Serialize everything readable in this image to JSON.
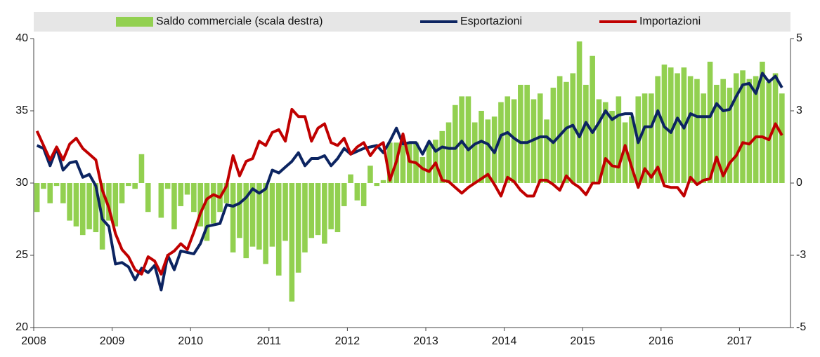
{
  "chart_data": {
    "type": "bar-line",
    "categories": [
      "2008",
      null,
      null,
      null,
      null,
      null,
      null,
      null,
      null,
      null,
      null,
      null,
      "2009",
      null,
      null,
      null,
      null,
      null,
      null,
      null,
      null,
      null,
      null,
      null,
      "2010",
      null,
      null,
      null,
      null,
      null,
      null,
      null,
      null,
      null,
      null,
      null,
      "2011",
      null,
      null,
      null,
      null,
      null,
      null,
      null,
      null,
      null,
      null,
      null,
      "2012",
      null,
      null,
      null,
      null,
      null,
      null,
      null,
      null,
      null,
      null,
      null,
      "2013",
      null,
      null,
      null,
      null,
      null,
      null,
      null,
      null,
      null,
      null,
      null,
      "2014",
      null,
      null,
      null,
      null,
      null,
      null,
      null,
      null,
      null,
      null,
      null,
      "2015",
      null,
      null,
      null,
      null,
      null,
      null,
      null,
      null,
      null,
      null,
      null,
      "2016",
      null,
      null,
      null,
      null,
      null,
      null,
      null,
      null,
      null,
      null,
      null,
      "2017",
      null,
      null,
      null,
      null,
      null,
      null
    ],
    "series": [
      {
        "name": "Saldo commerciale (scala destra)",
        "color": "#92d050",
        "axis": "y2",
        "kind": "bar",
        "values": [
          -1.0,
          -0.2,
          -0.7,
          -0.1,
          -0.7,
          -1.3,
          -1.5,
          -1.8,
          -1.6,
          -1.7,
          -2.3,
          -1.3,
          -1.5,
          -0.7,
          -0.1,
          -0.2,
          1.0,
          -1.0,
          0.0,
          -1.2,
          -0.2,
          -1.6,
          -0.8,
          -0.4,
          -1.0,
          -1.5,
          -2.0,
          -1.4,
          -1.0,
          -0.7,
          -2.4,
          -1.9,
          -2.6,
          -2.2,
          -2.3,
          -2.8,
          -2.2,
          -3.2,
          -2.0,
          -4.1,
          -3.1,
          -2.4,
          -1.9,
          -1.8,
          -2.1,
          -1.6,
          -1.7,
          -0.8,
          0.3,
          -0.6,
          -0.8,
          0.6,
          -0.1,
          0.1,
          1.4,
          1.4,
          1.3,
          1.4,
          1.4,
          0.9,
          1.4,
          1.5,
          1.8,
          2.1,
          2.7,
          3.0,
          3.0,
          2.1,
          2.5,
          2.2,
          2.3,
          2.8,
          3.0,
          2.9,
          3.4,
          3.4,
          2.9,
          3.1,
          2.2,
          3.3,
          3.7,
          3.5,
          3.8,
          4.9,
          3.4,
          4.4,
          2.9,
          2.8,
          2.5,
          3.0,
          2.1,
          2.3,
          3.0,
          3.1,
          3.1,
          3.7,
          4.1,
          4.0,
          3.8,
          4.0,
          3.7,
          3.6,
          3.1,
          4.2,
          3.4,
          3.6,
          3.3,
          3.8,
          3.9,
          3.6,
          3.7,
          4.2,
          3.5,
          3.8,
          3.1
        ]
      },
      {
        "name": "Esportazioni",
        "color": "#0c2461",
        "kind": "line",
        "values": [
          32.6,
          32.4,
          31.2,
          32.4,
          30.9,
          31.4,
          31.5,
          30.4,
          30.6,
          29.8,
          27.5,
          27.0,
          24.4,
          24.5,
          24.2,
          23.3,
          24.1,
          23.8,
          24.3,
          22.6,
          25.0,
          24.0,
          25.3,
          25.2,
          25.1,
          25.8,
          27.0,
          27.1,
          27.2,
          28.5,
          28.4,
          28.6,
          29.0,
          29.6,
          29.3,
          29.6,
          30.9,
          30.7,
          31.1,
          31.5,
          32.1,
          31.2,
          31.7,
          31.7,
          31.9,
          31.2,
          31.7,
          32.4,
          32.0,
          32.2,
          32.4,
          32.5,
          32.6,
          32.1,
          32.9,
          33.8,
          32.7,
          32.8,
          32.8,
          32.0,
          32.9,
          32.2,
          32.5,
          32.4,
          32.4,
          32.9,
          32.3,
          32.7,
          32.9,
          32.7,
          32.1,
          33.3,
          33.5,
          33.1,
          32.8,
          32.8,
          33.0,
          33.2,
          33.2,
          32.8,
          33.3,
          33.8,
          34.0,
          33.2,
          34.2,
          33.5,
          34.2,
          35.0,
          34.4,
          34.7,
          34.8,
          34.8,
          32.8,
          33.9,
          33.9,
          35.0,
          33.9,
          33.5,
          34.5,
          33.8,
          34.8,
          34.6,
          34.6,
          34.6,
          35.5,
          35.0,
          35.1,
          36.0,
          36.8,
          36.9,
          36.2,
          37.6,
          37.0,
          37.4,
          36.6
        ]
      },
      {
        "name": "Importazioni",
        "color": "#c00000",
        "kind": "line",
        "values": [
          33.6,
          32.6,
          31.6,
          32.5,
          31.6,
          32.7,
          33.1,
          32.4,
          32.0,
          31.6,
          29.5,
          28.3,
          26.5,
          25.4,
          24.9,
          24.0,
          23.7,
          24.9,
          24.6,
          23.7,
          25.0,
          25.3,
          25.8,
          25.4,
          26.6,
          27.9,
          28.9,
          29.2,
          29.0,
          29.8,
          31.9,
          30.5,
          31.5,
          31.7,
          32.9,
          32.6,
          33.5,
          33.7,
          32.9,
          35.1,
          34.6,
          34.6,
          32.9,
          33.8,
          34.1,
          32.8,
          32.6,
          33.1,
          32.0,
          32.5,
          32.8,
          31.9,
          32.5,
          32.8,
          30.2,
          31.5,
          33.4,
          31.5,
          31.4,
          31.0,
          30.8,
          31.4,
          30.2,
          30.1,
          29.7,
          29.3,
          29.7,
          30.0,
          30.3,
          30.6,
          29.9,
          29.1,
          30.4,
          30.1,
          29.5,
          29.1,
          29.1,
          30.2,
          30.2,
          29.9,
          29.5,
          30.5,
          30.0,
          29.7,
          29.2,
          30.0,
          30.0,
          31.7,
          31.2,
          31.1,
          32.6,
          31.1,
          29.7,
          31.0,
          30.4,
          31.1,
          29.8,
          29.7,
          29.7,
          29.1,
          30.4,
          29.9,
          30.2,
          30.3,
          31.8,
          30.5,
          31.4,
          31.9,
          32.8,
          32.7,
          33.2,
          33.2,
          33.0,
          34.1,
          33.3
        ]
      }
    ],
    "ylim": [
      20,
      40
    ],
    "yticks": [
      20,
      25,
      30,
      35,
      40
    ],
    "y2lim": [
      -5,
      5
    ],
    "y2ticks": [
      -5,
      {
        "value": -2.5,
        "label": "-3"
      },
      0,
      {
        "value": 2.5,
        "label": "3"
      },
      5
    ],
    "legend": "top"
  }
}
